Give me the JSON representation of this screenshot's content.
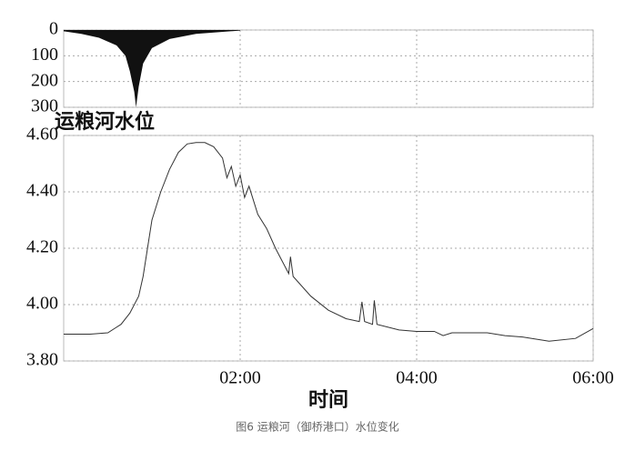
{
  "caption": "图6 运粮河（御桥港口）水位变化",
  "chart_data": [
    {
      "type": "area",
      "x": [
        0,
        0.2,
        0.4,
        0.6,
        0.7,
        0.75,
        0.8,
        0.82,
        0.85,
        0.9,
        1.0,
        1.2,
        1.5,
        2.0
      ],
      "values": [
        5,
        15,
        30,
        60,
        100,
        160,
        240,
        300,
        220,
        130,
        70,
        35,
        15,
        2
      ],
      "color": "#111111",
      "xlim": [
        0,
        6
      ],
      "ylim": [
        0,
        300
      ],
      "yticks": [
        0,
        100,
        200,
        300
      ],
      "y_inverted": true,
      "grid": true
    },
    {
      "type": "line",
      "title": "运粮河水位",
      "xlabel": "时间",
      "x": [
        0,
        0.3,
        0.5,
        0.65,
        0.75,
        0.85,
        0.9,
        0.95,
        1.0,
        1.1,
        1.2,
        1.3,
        1.4,
        1.5,
        1.6,
        1.7,
        1.8,
        1.85,
        1.9,
        1.95,
        2.0,
        2.05,
        2.1,
        2.2,
        2.3,
        2.4,
        2.5,
        2.55,
        2.57,
        2.6,
        2.8,
        3.0,
        3.2,
        3.35,
        3.38,
        3.41,
        3.5,
        3.52,
        3.55,
        3.8,
        4.0,
        4.2,
        4.3,
        4.4,
        4.8,
        5.0,
        5.2,
        5.5,
        5.8,
        6.0
      ],
      "values": [
        3.895,
        3.895,
        3.9,
        3.93,
        3.97,
        4.03,
        4.1,
        4.2,
        4.3,
        4.4,
        4.48,
        4.54,
        4.57,
        4.575,
        4.575,
        4.56,
        4.52,
        4.45,
        4.49,
        4.42,
        4.46,
        4.38,
        4.42,
        4.32,
        4.27,
        4.2,
        4.14,
        4.11,
        4.17,
        4.1,
        4.03,
        3.98,
        3.95,
        3.94,
        4.01,
        3.94,
        3.93,
        4.015,
        3.93,
        3.91,
        3.905,
        3.905,
        3.89,
        3.9,
        3.9,
        3.89,
        3.885,
        3.87,
        3.88,
        3.915
      ],
      "color": "#333333",
      "xlim": [
        0,
        6
      ],
      "xticks": [
        {
          "value": 2,
          "label": "02:00"
        },
        {
          "value": 4,
          "label": "04:00"
        },
        {
          "value": 6,
          "label": "06:00"
        }
      ],
      "ylim": [
        3.8,
        4.6
      ],
      "yticks": [
        {
          "value": 3.8,
          "label": "3.80"
        },
        {
          "value": 4.0,
          "label": "4.00"
        },
        {
          "value": 4.2,
          "label": "4.20"
        },
        {
          "value": 4.4,
          "label": "4.40"
        },
        {
          "value": 4.6,
          "label": "4.60"
        }
      ],
      "grid": true
    }
  ]
}
